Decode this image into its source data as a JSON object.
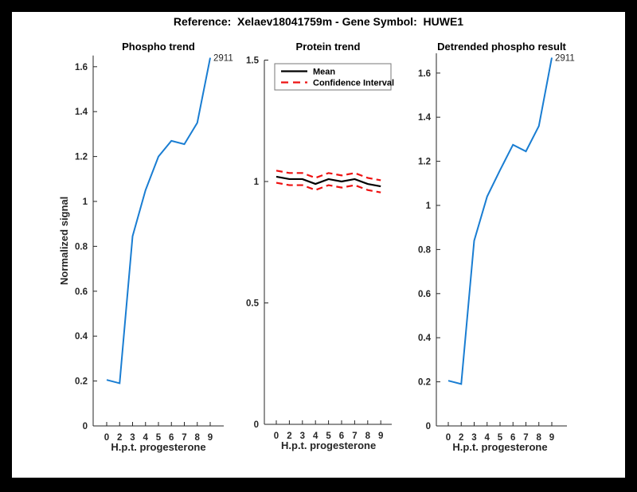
{
  "figure": {
    "background": "#000000",
    "canvas_color": "#ffffff",
    "axis_color": "#262626",
    "title": "Reference:  Xelaev18041759m - Gene Symbol:  HUWE1"
  },
  "chart_data": [
    {
      "type": "line",
      "title": "Phospho trend",
      "xlabel": "H.p.t. progesterone",
      "ylabel": "Normalized signal",
      "x_ticklabels": [
        "0",
        "2",
        "3",
        "4",
        "5",
        "6",
        "7",
        "8",
        "9"
      ],
      "y_ticklabels": [
        "0",
        "0.2",
        "0.4",
        "0.6",
        "0.8",
        "1",
        "1.2",
        "1.4",
        "1.6"
      ],
      "y_tick_values": [
        0,
        0.2,
        0.4,
        0.6,
        0.8,
        1,
        1.2,
        1.4,
        1.6
      ],
      "ylim": [
        0,
        1.65
      ],
      "grid": false,
      "legend": null,
      "annotation": {
        "text": "2911",
        "value": 1.64
      },
      "series": [
        {
          "name": "phospho-signal",
          "color": "#197dd2",
          "dash": null,
          "width": 2,
          "values": [
            0.205,
            0.19,
            0.845,
            1.05,
            1.2,
            1.27,
            1.255,
            1.35,
            1.64
          ]
        }
      ]
    },
    {
      "type": "line",
      "title": "Protein trend",
      "xlabel": "H.p.t. progesterone",
      "ylabel": "",
      "x_ticklabels": [
        "0",
        "2",
        "3",
        "4",
        "5",
        "6",
        "7",
        "8",
        "9"
      ],
      "y_ticklabels": [
        "0",
        "0.5",
        "1",
        "1.5"
      ],
      "y_tick_values": [
        0,
        0.5,
        1,
        1.5
      ],
      "ylim": [
        0,
        1.5
      ],
      "grid": false,
      "legend": {
        "position": "top-left",
        "entries": [
          {
            "label": "Mean",
            "color": "#000000",
            "dash": null
          },
          {
            "label": "Confidence Interval",
            "color": "#ee1111",
            "dash": "9 6"
          }
        ]
      },
      "annotation": null,
      "series": [
        {
          "name": "mean",
          "color": "#000000",
          "dash": null,
          "width": 2.2,
          "values": [
            1.02,
            1.01,
            1.01,
            0.99,
            1.01,
            1.0,
            1.01,
            0.99,
            0.98
          ]
        },
        {
          "name": "ci-upper",
          "color": "#ee1111",
          "dash": "8 5",
          "width": 2.2,
          "values": [
            1.045,
            1.035,
            1.035,
            1.015,
            1.035,
            1.025,
            1.035,
            1.015,
            1.005
          ]
        },
        {
          "name": "ci-lower",
          "color": "#ee1111",
          "dash": "8 5",
          "width": 2.2,
          "values": [
            0.995,
            0.985,
            0.985,
            0.965,
            0.985,
            0.975,
            0.985,
            0.965,
            0.955
          ]
        }
      ]
    },
    {
      "type": "line",
      "title": "Detrended phospho result",
      "xlabel": "H.p.t. progesterone",
      "ylabel": "",
      "x_ticklabels": [
        "0",
        "2",
        "3",
        "4",
        "5",
        "6",
        "7",
        "8",
        "9"
      ],
      "y_ticklabels": [
        "0",
        "0.2",
        "0.4",
        "0.6",
        "0.8",
        "1",
        "1.2",
        "1.4",
        "1.6"
      ],
      "y_tick_values": [
        0,
        0.2,
        0.4,
        0.6,
        0.8,
        1,
        1.2,
        1.4,
        1.6
      ],
      "ylim": [
        0,
        1.69
      ],
      "grid": false,
      "legend": null,
      "annotation": {
        "text": "2911",
        "value": 1.67
      },
      "series": [
        {
          "name": "detrended-phospho-signal",
          "color": "#197dd2",
          "dash": null,
          "width": 2,
          "values": [
            0.205,
            0.19,
            0.84,
            1.04,
            1.16,
            1.275,
            1.245,
            1.36,
            1.67
          ]
        }
      ]
    }
  ]
}
